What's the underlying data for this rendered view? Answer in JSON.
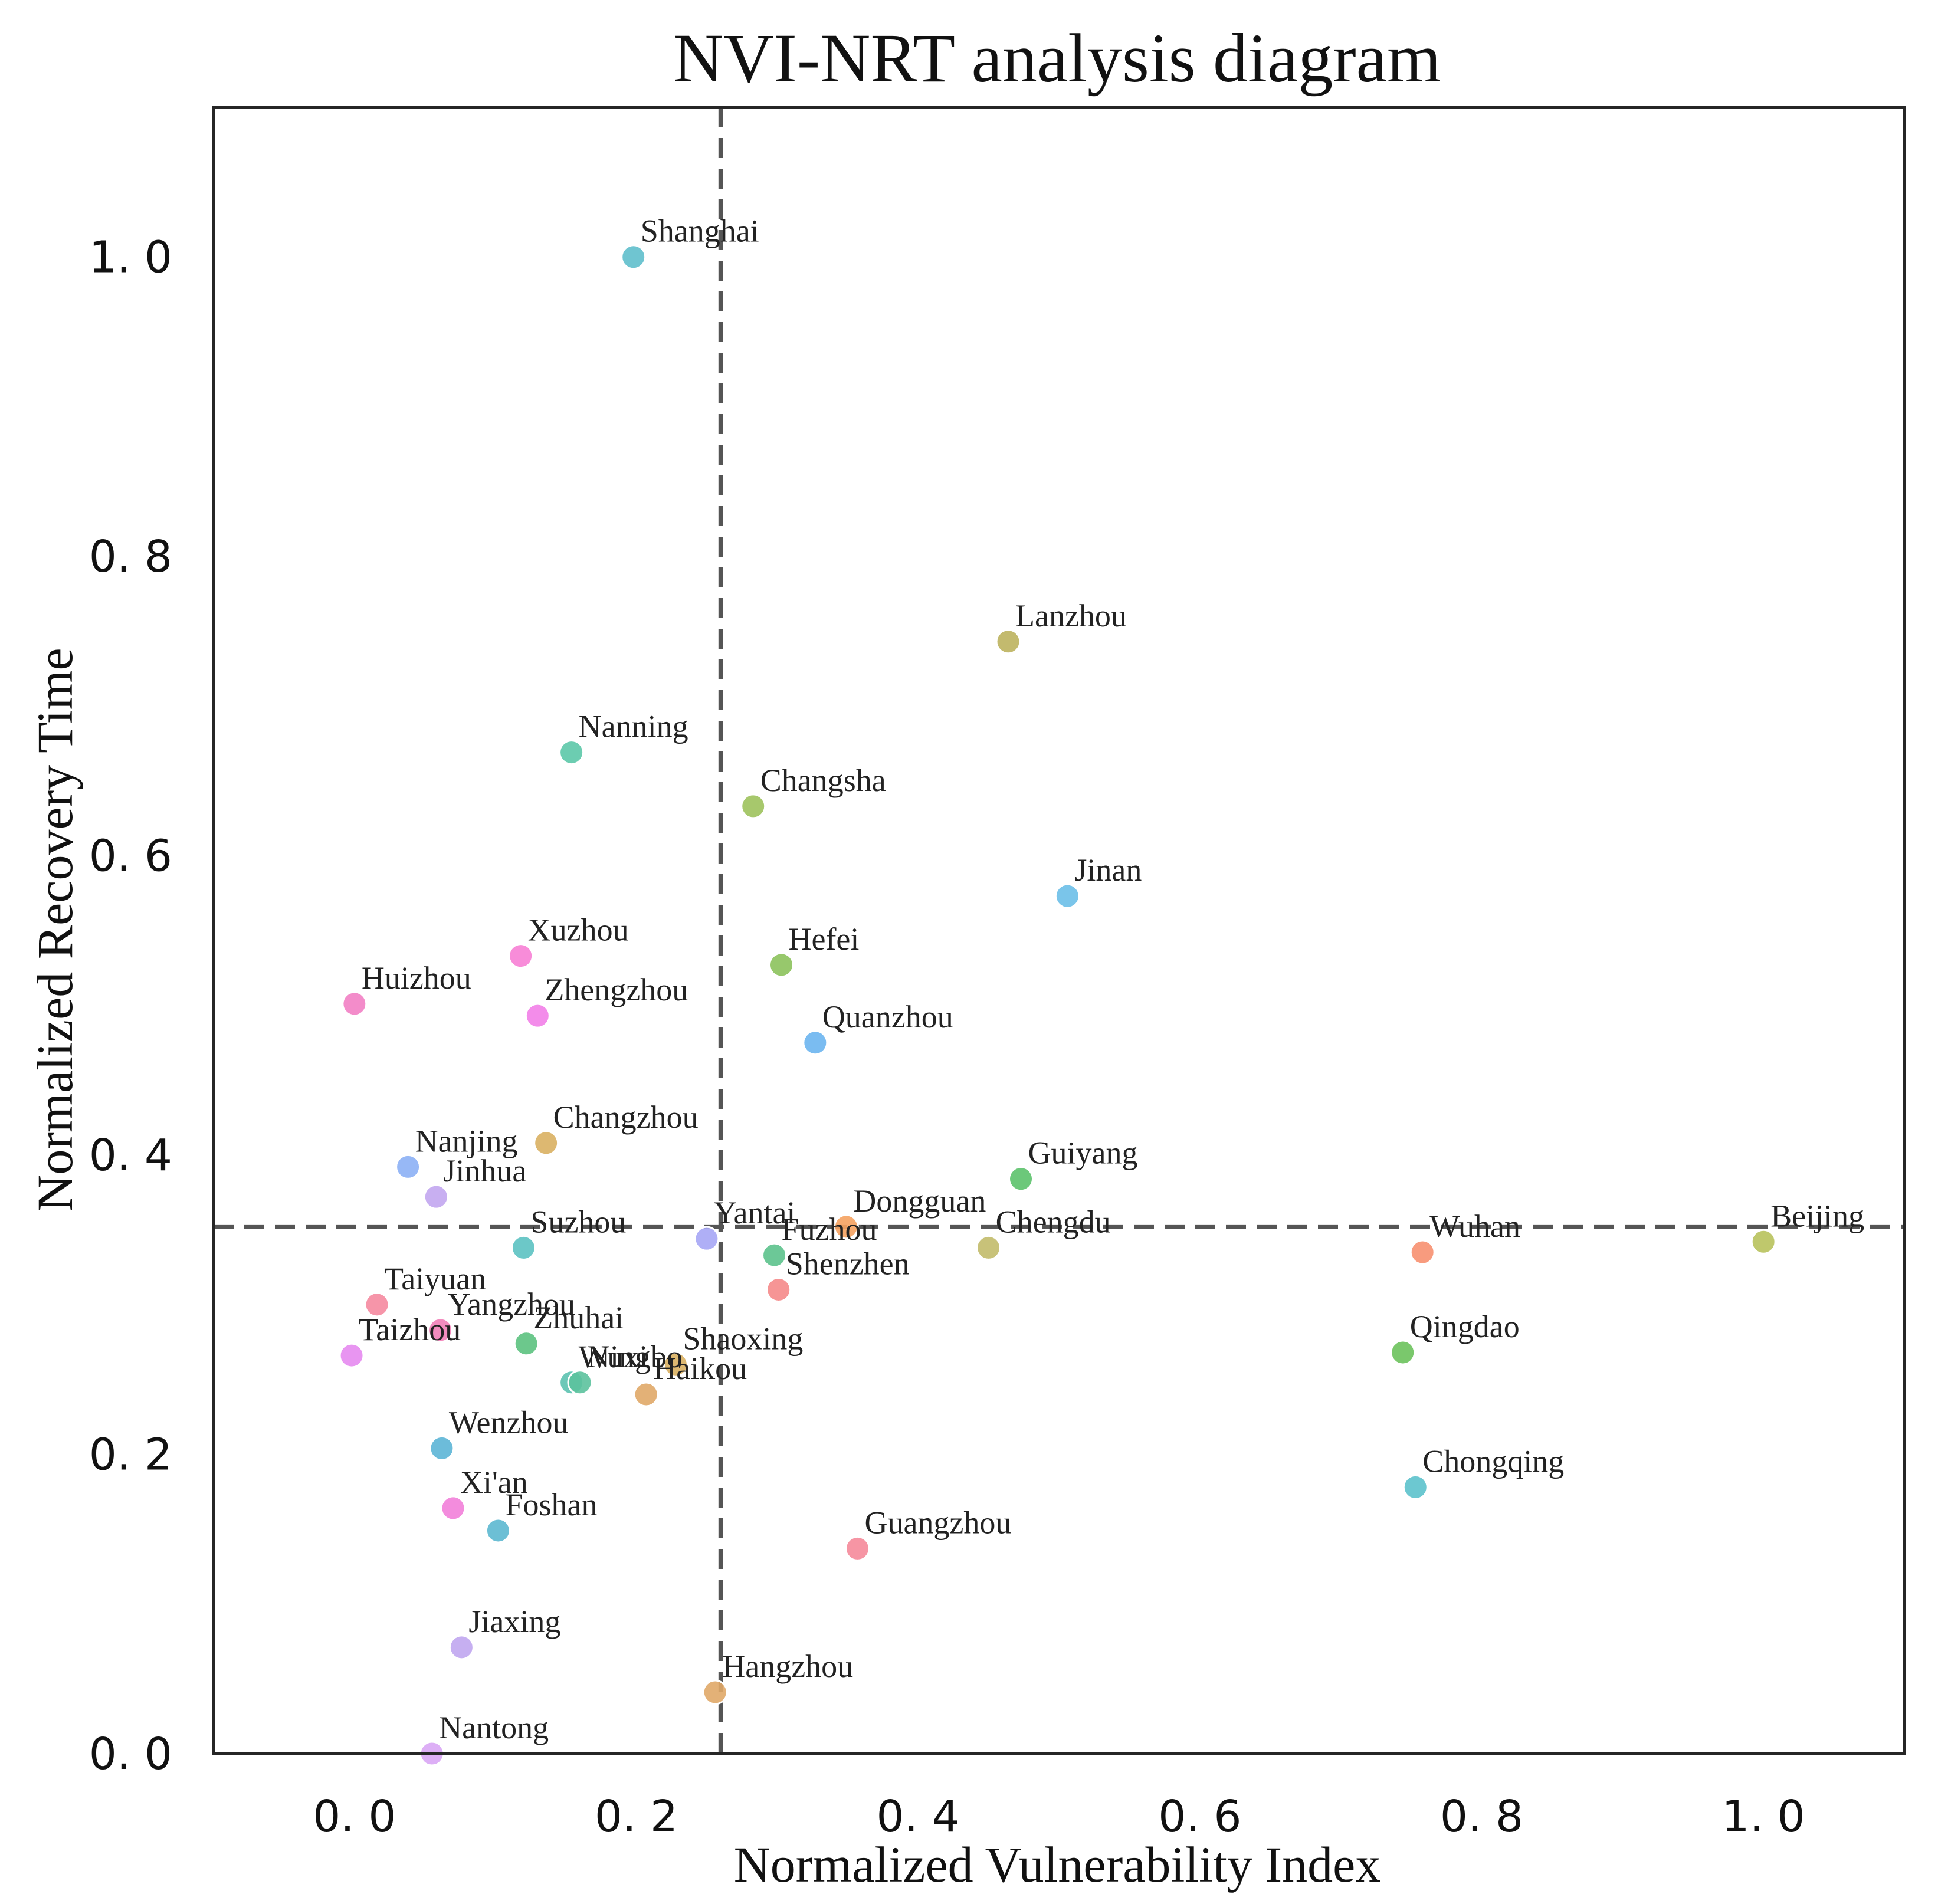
{
  "chart_data": {
    "type": "scatter",
    "title": "NVI-NRT analysis diagram",
    "xlabel": "Normalized Vulnerability Index",
    "ylabel": "Normalized Recovery Time",
    "xlim": [
      -0.1,
      1.1
    ],
    "ylim": [
      0.0,
      1.1
    ],
    "xticks": [
      0.0,
      0.2,
      0.4,
      0.6,
      0.8,
      1.0
    ],
    "yticks": [
      0.0,
      0.2,
      0.4,
      0.6,
      0.8,
      1.0
    ],
    "xtick_labels": [
      "0. 0",
      "0. 2",
      "0. 4",
      "0. 6",
      "0. 8",
      "1. 0"
    ],
    "ytick_labels": [
      "0. 0",
      "0. 2",
      "0. 4",
      "0. 6",
      "0. 8",
      "1. 0"
    ],
    "grid": false,
    "legend": "none",
    "reference_lines": {
      "x": 0.26,
      "y": 0.352,
      "style": "dashed",
      "color": "#555555"
    },
    "points": [
      {
        "label": "Shanghai",
        "x": 0.198,
        "y": 1.0,
        "color": "#5fbfcc"
      },
      {
        "label": "Lanzhou",
        "x": 0.464,
        "y": 0.743,
        "color": "#bdb35e"
      },
      {
        "label": "Nanning",
        "x": 0.154,
        "y": 0.669,
        "color": "#5cc8a8"
      },
      {
        "label": "Changsha",
        "x": 0.283,
        "y": 0.633,
        "color": "#9dc25c"
      },
      {
        "label": "Jinan",
        "x": 0.506,
        "y": 0.573,
        "color": "#6cbfe8"
      },
      {
        "label": "Xuzhou",
        "x": 0.118,
        "y": 0.533,
        "color": "#f77fd5"
      },
      {
        "label": "Hefei",
        "x": 0.303,
        "y": 0.527,
        "color": "#8cc25c"
      },
      {
        "label": "Huizhou",
        "x": 0.0,
        "y": 0.501,
        "color": "#f27fc4"
      },
      {
        "label": "Zhengzhou",
        "x": 0.13,
        "y": 0.493,
        "color": "#f27fe8"
      },
      {
        "label": "Quanzhou",
        "x": 0.327,
        "y": 0.475,
        "color": "#6cb5f0"
      },
      {
        "label": "Changzhou",
        "x": 0.136,
        "y": 0.408,
        "color": "#d9b062"
      },
      {
        "label": "Nanjing",
        "x": 0.038,
        "y": 0.392,
        "color": "#8cb0f5"
      },
      {
        "label": "Guiyang",
        "x": 0.473,
        "y": 0.384,
        "color": "#5cc26c"
      },
      {
        "label": "Jinhua",
        "x": 0.058,
        "y": 0.372,
        "color": "#c2a6f0"
      },
      {
        "label": "Dongguan",
        "x": 0.349,
        "y": 0.352,
        "color": "#f5a260"
      },
      {
        "label": "Yantai",
        "x": 0.25,
        "y": 0.344,
        "color": "#a6a6f5"
      },
      {
        "label": "Beijing",
        "x": 1.0,
        "y": 0.342,
        "color": "#b8c25c"
      },
      {
        "label": "Chengdu",
        "x": 0.45,
        "y": 0.338,
        "color": "#c2bb6a"
      },
      {
        "label": "Suzhou",
        "x": 0.12,
        "y": 0.338,
        "color": "#5cc2c2"
      },
      {
        "label": "Wuhan",
        "x": 0.758,
        "y": 0.335,
        "color": "#f79070"
      },
      {
        "label": "Fuzhou",
        "x": 0.298,
        "y": 0.333,
        "color": "#5cc28c"
      },
      {
        "label": "Shenzhen",
        "x": 0.301,
        "y": 0.31,
        "color": "#f58a8a"
      },
      {
        "label": "Taiyuan",
        "x": 0.016,
        "y": 0.3,
        "color": "#f58aa0"
      },
      {
        "label": "Yangzhou",
        "x": 0.061,
        "y": 0.283,
        "color": "#f27fb8"
      },
      {
        "label": "Zhuhai",
        "x": 0.122,
        "y": 0.274,
        "color": "#5cc27f"
      },
      {
        "label": "Qingdao",
        "x": 0.744,
        "y": 0.268,
        "color": "#6cc25c"
      },
      {
        "label": "Taizhou",
        "x": -0.002,
        "y": 0.266,
        "color": "#e58af0"
      },
      {
        "label": "Shaoxing",
        "x": 0.228,
        "y": 0.26,
        "color": "#d9b062"
      },
      {
        "label": "Wuxi",
        "x": 0.154,
        "y": 0.248,
        "color": "#5cc2b0"
      },
      {
        "label": "Ningbo",
        "x": 0.16,
        "y": 0.248,
        "color": "#5cc29d"
      },
      {
        "label": "Haikou",
        "x": 0.207,
        "y": 0.24,
        "color": "#e0a868"
      },
      {
        "label": "Wenzhou",
        "x": 0.062,
        "y": 0.204,
        "color": "#5cb5d6"
      },
      {
        "label": "Chongqing",
        "x": 0.753,
        "y": 0.178,
        "color": "#5cc2cc"
      },
      {
        "label": "Xi'an",
        "x": 0.07,
        "y": 0.164,
        "color": "#f27fd9"
      },
      {
        "label": "Foshan",
        "x": 0.102,
        "y": 0.149,
        "color": "#5cb8d0"
      },
      {
        "label": "Guangzhou",
        "x": 0.357,
        "y": 0.137,
        "color": "#f58a9a"
      },
      {
        "label": "Jiaxing",
        "x": 0.076,
        "y": 0.071,
        "color": "#c0a6f0"
      },
      {
        "label": "Hangzhou",
        "x": 0.256,
        "y": 0.041,
        "color": "#e0a868"
      },
      {
        "label": "Nantong",
        "x": 0.055,
        "y": 0.0,
        "color": "#d9a6f5"
      }
    ]
  }
}
